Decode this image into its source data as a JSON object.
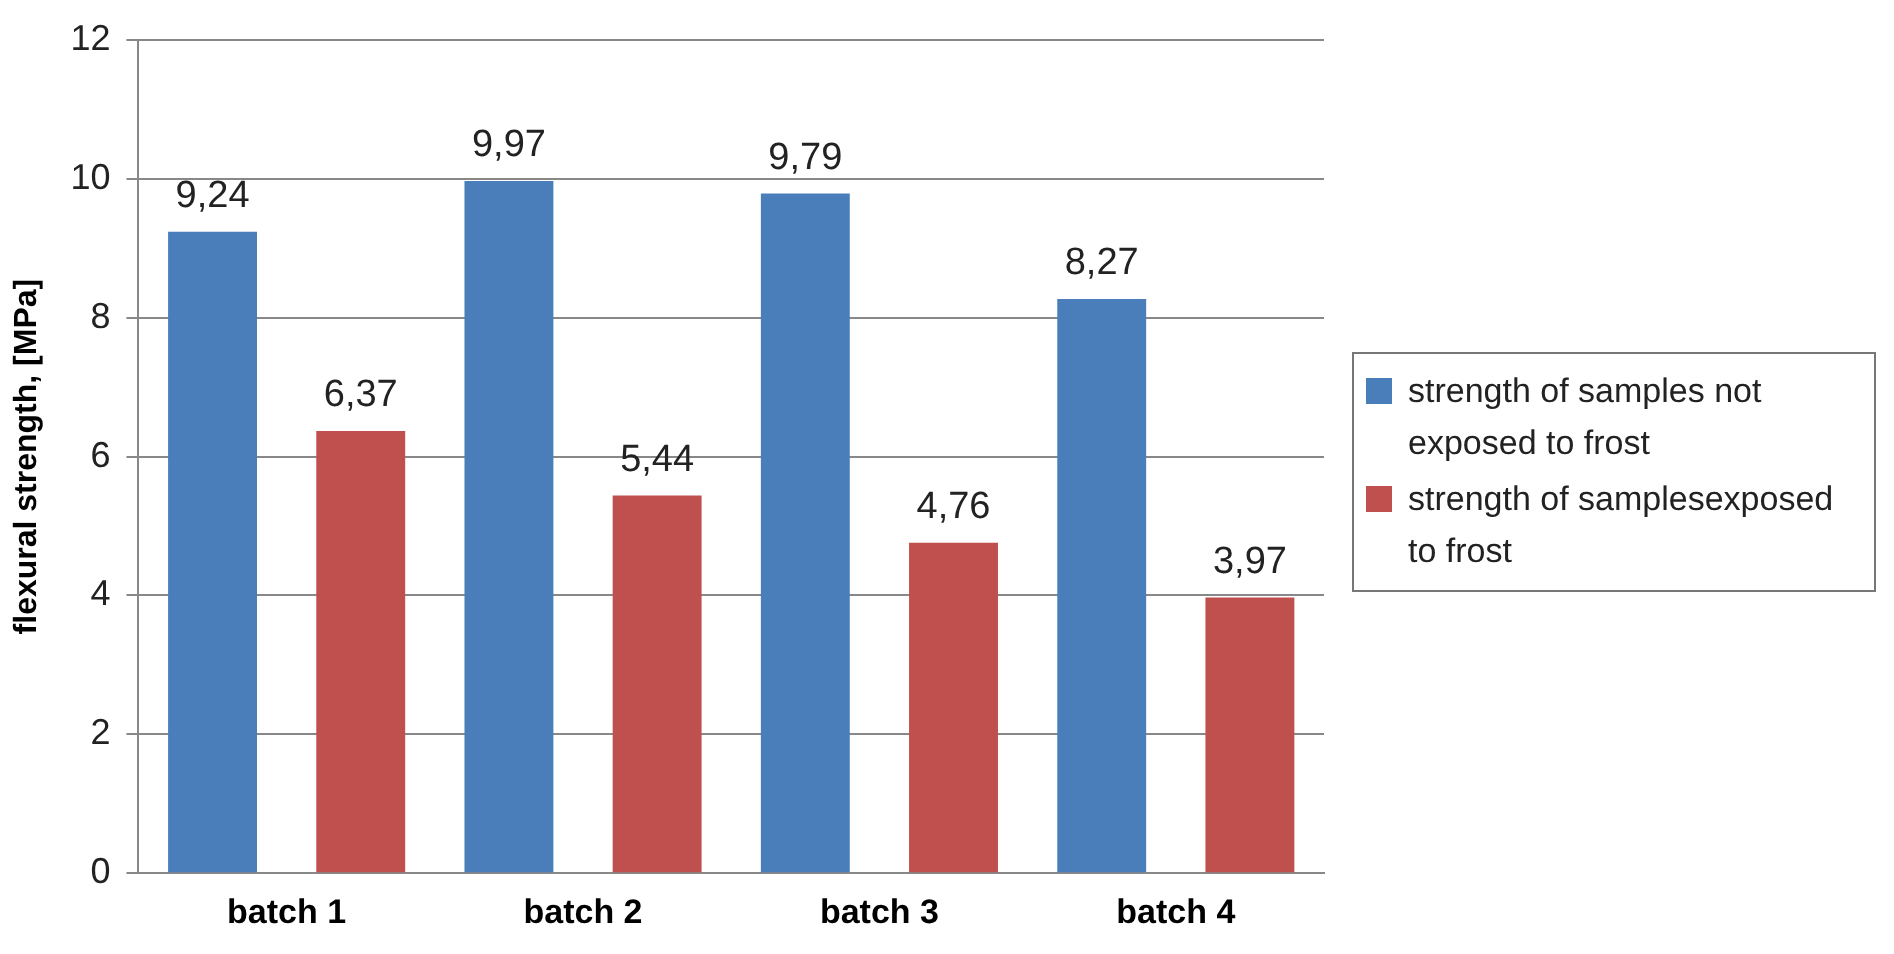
{
  "chart_data": {
    "type": "bar",
    "ylabel": "flexural strength, [MPa]",
    "categories": [
      "batch 1",
      "batch 2",
      "batch 3",
      "batch 4"
    ],
    "series": [
      {
        "name": "strength of samples not exposed to frost",
        "color": "#4a7ebb",
        "values": [
          9.24,
          9.97,
          9.79,
          8.27
        ],
        "value_labels": [
          "9,24",
          "9,97",
          "9,79",
          "8,27"
        ]
      },
      {
        "name": "strength of samplesexposed to frost",
        "color": "#c0504d",
        "values": [
          6.37,
          5.44,
          4.76,
          3.97
        ],
        "value_labels": [
          "6,37",
          "5,44",
          "4,76",
          "3,97"
        ]
      }
    ],
    "ylim": [
      0,
      12
    ],
    "yticks": [
      0,
      2,
      4,
      6,
      8,
      10,
      12
    ],
    "grid": "y",
    "legend": "right"
  }
}
